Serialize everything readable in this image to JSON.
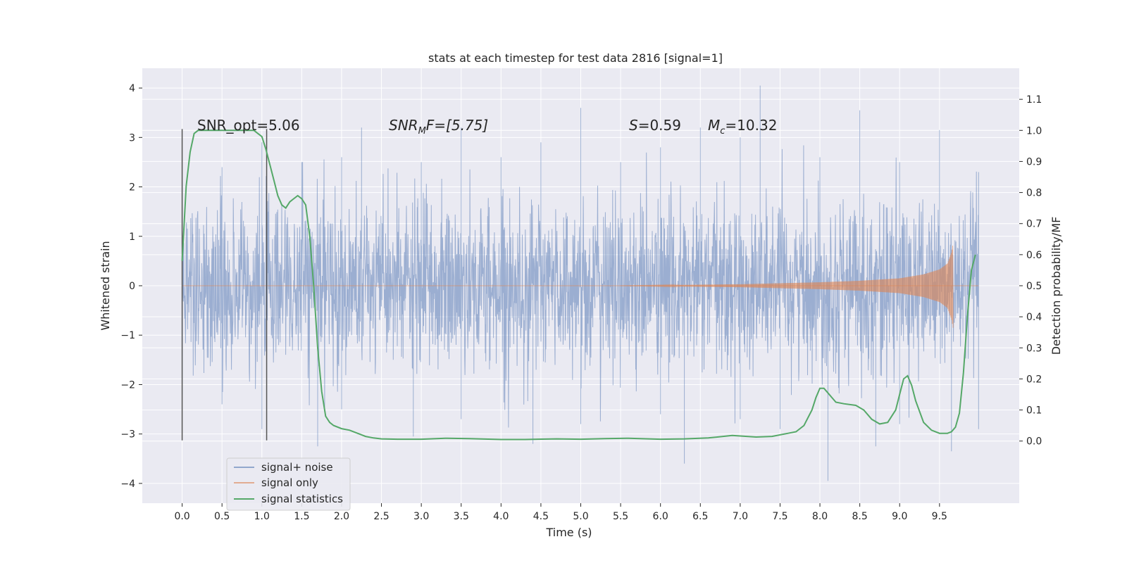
{
  "chart_data": {
    "type": "line",
    "title": "stats at each timestep for test data 2816 [signal=1]",
    "xlabel": "Time (s)",
    "ylabel": "Whitened strain",
    "y2label": "Detection probability/MF",
    "xlim": [
      -0.5,
      10.5
    ],
    "ylim": [
      -4.4,
      4.4
    ],
    "y2lim": [
      -0.2,
      1.2
    ],
    "x_ticks": [
      0.0,
      0.5,
      1.0,
      1.5,
      2.0,
      2.5,
      3.0,
      3.5,
      4.0,
      4.5,
      5.0,
      5.5,
      6.0,
      6.5,
      7.0,
      7.5,
      8.0,
      8.5,
      9.0,
      9.5
    ],
    "x_tick_labels": [
      "0.0",
      "0.5",
      "1.0",
      "1.5",
      "2.0",
      "2.5",
      "3.0",
      "3.5",
      "4.0",
      "4.5",
      "5.0",
      "5.5",
      "6.0",
      "6.5",
      "7.0",
      "7.5",
      "8.0",
      "8.5",
      "9.0",
      "9.5"
    ],
    "y_ticks": [
      4,
      3,
      2,
      1,
      0,
      -1,
      -2,
      -3,
      -4
    ],
    "y_tick_labels": [
      "4",
      "3",
      "2",
      "1",
      "0",
      "−1",
      "−2",
      "−3",
      "−4"
    ],
    "y2_ticks": [
      1.1,
      1.0,
      0.9,
      0.8,
      0.7,
      0.6,
      0.5,
      0.4,
      0.3,
      0.2,
      0.1,
      0.0
    ],
    "y2_tick_labels": [
      "1.1",
      "1.0",
      "0.9",
      "0.8",
      "0.7",
      "0.6",
      "0.5",
      "0.4",
      "0.3",
      "0.2",
      "0.1",
      "0.0"
    ],
    "grid": true,
    "legend_position": "lower-left",
    "annotations": {
      "snr_opt": "SNR_opt=5.06",
      "snr_mf_italic": "SNR",
      "snr_mf_sub": "M",
      "snr_mf_rest": "F=[5.75]",
      "s_italic": "S",
      "s_rest": "=0.59",
      "mc_italic": "M",
      "mc_sub": "c",
      "mc_rest": "=10.32"
    },
    "vertical_markers": [
      0.0,
      1.06
    ],
    "series": [
      {
        "name": "signal+ noise",
        "color": "#4c72b0",
        "x_range": [
          0.0,
          9.99
        ],
        "sigma": 0.85,
        "envelope_max": [
          [
            0.0,
            2.1
          ],
          [
            0.5,
            2.4
          ],
          [
            1.0,
            2.9
          ],
          [
            1.5,
            2.5
          ],
          [
            2.0,
            2.6
          ],
          [
            2.25,
            3.2
          ],
          [
            3.0,
            2.5
          ],
          [
            3.5,
            3.2
          ],
          [
            4.0,
            2.6
          ],
          [
            4.5,
            2.9
          ],
          [
            5.0,
            3.6
          ],
          [
            5.5,
            2.5
          ],
          [
            6.0,
            2.8
          ],
          [
            6.5,
            3.2
          ],
          [
            7.0,
            3.0
          ],
          [
            7.25,
            4.05
          ],
          [
            8.0,
            2.6
          ],
          [
            8.5,
            3.55
          ],
          [
            9.0,
            2.5
          ],
          [
            9.5,
            3.15
          ],
          [
            9.99,
            2.3
          ]
        ],
        "envelope_min": [
          [
            0.0,
            -2.2
          ],
          [
            0.5,
            -2.4
          ],
          [
            1.0,
            -2.9
          ],
          [
            1.7,
            -3.25
          ],
          [
            2.0,
            -2.5
          ],
          [
            2.9,
            -3.05
          ],
          [
            3.5,
            -2.7
          ],
          [
            4.4,
            -3.2
          ],
          [
            5.0,
            -2.8
          ],
          [
            6.0,
            -2.6
          ],
          [
            6.3,
            -3.6
          ],
          [
            7.0,
            -2.7
          ],
          [
            7.5,
            -2.9
          ],
          [
            8.1,
            -3.95
          ],
          [
            8.7,
            -3.25
          ],
          [
            9.0,
            -2.8
          ],
          [
            9.65,
            -3.35
          ],
          [
            9.99,
            -2.9
          ]
        ]
      },
      {
        "name": "signal only",
        "color": "#dd8452",
        "x_range": [
          5.5,
          9.67
        ],
        "amplitude_points": [
          [
            5.5,
            0.0
          ],
          [
            6.0,
            0.01
          ],
          [
            7.0,
            0.03
          ],
          [
            8.0,
            0.07
          ],
          [
            8.5,
            0.1
          ],
          [
            9.0,
            0.15
          ],
          [
            9.3,
            0.23
          ],
          [
            9.5,
            0.33
          ],
          [
            9.6,
            0.45
          ],
          [
            9.65,
            0.68
          ],
          [
            9.67,
            0.85
          ]
        ]
      },
      {
        "name": "signal statistics",
        "color": "#55a868",
        "axis": "right",
        "x": [
          0.0,
          0.05,
          0.1,
          0.15,
          0.2,
          0.3,
          0.5,
          0.7,
          0.9,
          0.95,
          1.0,
          1.05,
          1.1,
          1.15,
          1.2,
          1.25,
          1.3,
          1.35,
          1.4,
          1.45,
          1.5,
          1.55,
          1.6,
          1.65,
          1.7,
          1.75,
          1.8,
          1.85,
          1.9,
          2.0,
          2.1,
          2.2,
          2.3,
          2.4,
          2.5,
          2.7,
          3.0,
          3.3,
          3.6,
          4.0,
          4.3,
          4.7,
          5.0,
          5.3,
          5.6,
          6.0,
          6.3,
          6.6,
          6.9,
          7.2,
          7.4,
          7.6,
          7.7,
          7.8,
          7.9,
          7.95,
          8.0,
          8.05,
          8.1,
          8.15,
          8.2,
          8.3,
          8.45,
          8.55,
          8.65,
          8.75,
          8.85,
          8.95,
          9.0,
          9.05,
          9.1,
          9.15,
          9.2,
          9.3,
          9.4,
          9.5,
          9.6,
          9.65,
          9.7,
          9.75,
          9.8,
          9.85,
          9.9,
          9.95
        ],
        "values": [
          0.58,
          0.82,
          0.93,
          0.99,
          1.0,
          1.0,
          1.0,
          1.0,
          1.0,
          0.99,
          0.98,
          0.94,
          0.89,
          0.84,
          0.79,
          0.76,
          0.75,
          0.77,
          0.78,
          0.79,
          0.78,
          0.76,
          0.66,
          0.5,
          0.3,
          0.16,
          0.08,
          0.06,
          0.05,
          0.04,
          0.035,
          0.025,
          0.015,
          0.01,
          0.007,
          0.006,
          0.006,
          0.009,
          0.008,
          0.005,
          0.005,
          0.007,
          0.006,
          0.008,
          0.009,
          0.006,
          0.007,
          0.01,
          0.018,
          0.013,
          0.015,
          0.025,
          0.03,
          0.05,
          0.1,
          0.14,
          0.17,
          0.17,
          0.155,
          0.14,
          0.125,
          0.12,
          0.115,
          0.1,
          0.07,
          0.055,
          0.06,
          0.1,
          0.15,
          0.2,
          0.21,
          0.18,
          0.13,
          0.06,
          0.035,
          0.025,
          0.025,
          0.03,
          0.045,
          0.09,
          0.22,
          0.4,
          0.55,
          0.6
        ]
      }
    ]
  }
}
